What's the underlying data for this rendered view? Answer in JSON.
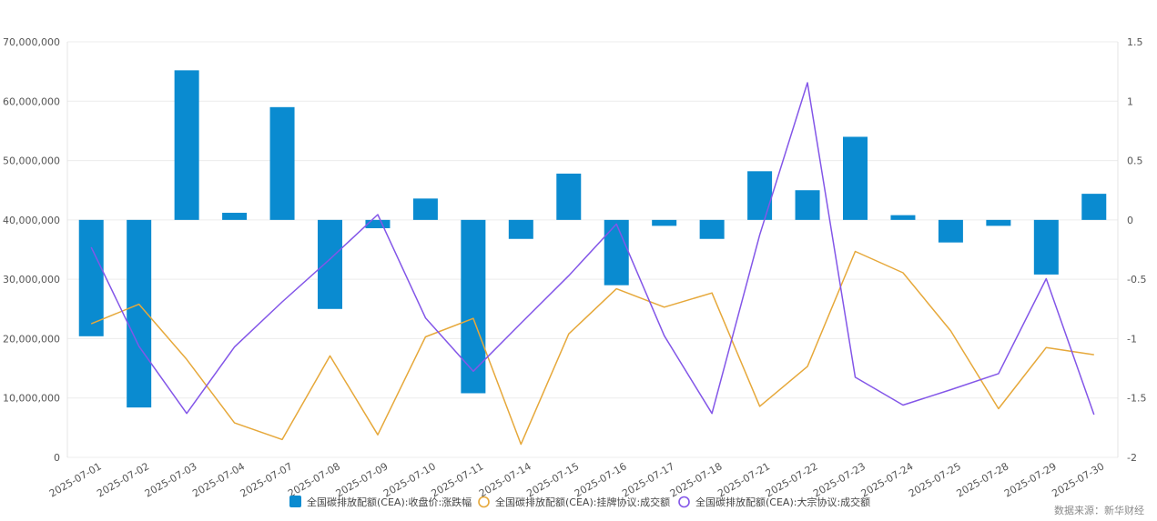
{
  "chart_data": {
    "type": "bar",
    "categories": [
      "2025-07-01",
      "2025-07-02",
      "2025-07-03",
      "2025-07-04",
      "2025-07-07",
      "2025-07-08",
      "2025-07-09",
      "2025-07-10",
      "2025-07-11",
      "2025-07-14",
      "2025-07-15",
      "2025-07-16",
      "2025-07-17",
      "2025-07-18",
      "2025-07-21",
      "2025-07-22",
      "2025-07-23",
      "2025-07-24",
      "2025-07-25",
      "2025-07-28",
      "2025-07-29",
      "2025-07-30"
    ],
    "left_axis": {
      "min": 0,
      "max": 70000000,
      "step": 10000000,
      "tick_labels": [
        "0",
        "10,000,000",
        "20,000,000",
        "30,000,000",
        "40,000,000",
        "50,000,000",
        "60,000,000",
        "70,000,000"
      ]
    },
    "right_axis": {
      "min": -2,
      "max": 1.5,
      "step": 0.5,
      "tick_labels": [
        "-2",
        "-1.5",
        "-1",
        "-0.5",
        "0",
        "0.5",
        "1",
        "1.5"
      ]
    },
    "series": [
      {
        "name": "全国碳排放配额(CEA):收盘价:涨跌幅",
        "type": "bar",
        "axis": "right",
        "color": "#0a8bd0",
        "values": [
          -0.98,
          -1.58,
          1.26,
          0.06,
          0.95,
          -0.75,
          -0.07,
          0.18,
          -1.46,
          -0.16,
          0.39,
          -0.55,
          -0.05,
          -0.16,
          0.41,
          0.25,
          0.7,
          0.04,
          -0.19,
          -0.05,
          -0.46,
          0.22
        ]
      },
      {
        "name": "全国碳排放配额(CEA):挂牌协议:成交额",
        "type": "line",
        "axis": "left",
        "color": "#e6a83a",
        "values": [
          22500000,
          25800000,
          16500000,
          5800000,
          3000000,
          17100000,
          3800000,
          20300000,
          23400000,
          2200000,
          20800000,
          28400000,
          25300000,
          27700000,
          8600000,
          15300000,
          34700000,
          31100000,
          21300000,
          8200000,
          18500000,
          17300000
        ]
      },
      {
        "name": "全国碳排放配额(CEA):大宗协议:成交额",
        "type": "line",
        "axis": "left",
        "color": "#8356e8",
        "values": [
          35400000,
          18700000,
          7400000,
          18600000,
          26200000,
          33400000,
          40900000,
          23500000,
          14500000,
          22600000,
          30600000,
          39300000,
          20500000,
          7400000,
          37500000,
          63100000,
          13500000,
          8800000,
          11400000,
          14100000,
          30100000,
          7200000
        ]
      }
    ],
    "legend_position": "bottom-center",
    "grid": true
  },
  "source_label": "数据来源：新华财经"
}
